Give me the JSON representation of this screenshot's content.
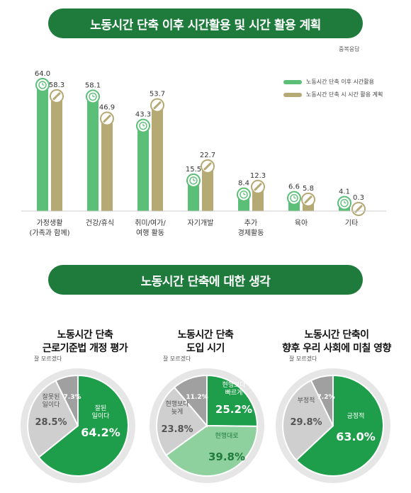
{
  "header": {
    "title": "노동시간 단축 이후 시간활용 및 시간 활용 계획",
    "note": "중복응답"
  },
  "section2": {
    "title": "노동시간 단축에 대한 생각"
  },
  "colors": {
    "dark_green": "#1e7b3c",
    "green": "#5cbf77",
    "olive": "#b5a974",
    "gray": "#a9a9a9",
    "light_gray": "#cfcfcf",
    "light_green": "#8fd19e"
  },
  "chart_data": [
    {
      "type": "bar",
      "categories": [
        "가정생활\n(가족과 함께)",
        "건강/휴식",
        "취미/여가/\n여행 활동",
        "자기개발",
        "추가\n경제활동",
        "육아",
        "기타"
      ],
      "series": [
        {
          "name": "노동시간 단축 이후 시간활용",
          "values": [
            64.0,
            58.1,
            43.3,
            15.5,
            8.4,
            6.6,
            4.1
          ],
          "color": "#5cbf77",
          "icon": "clock-icon"
        },
        {
          "name": "노동시간 단축 시 시간 활용 계획",
          "values": [
            58.3,
            46.9,
            53.7,
            22.7,
            12.3,
            5.8,
            0.3
          ],
          "color": "#b5a974",
          "icon": "pencil-icon"
        }
      ],
      "ylim": [
        0,
        64
      ]
    },
    {
      "type": "pie",
      "title": "노동시간 단축\n근로기준법 개정 평가",
      "slices": [
        {
          "label": "잘된\n일이다",
          "value": 64.2,
          "color": "#1e9e4a"
        },
        {
          "label": "잘못된\n일이다",
          "value": 28.5,
          "color": "#cfcfcf"
        },
        {
          "label": "잘 모르겠다",
          "value": 7.3,
          "color": "#a0a0a0"
        }
      ]
    },
    {
      "type": "pie",
      "title": "노동시간 단축\n도입 시기",
      "slices": [
        {
          "label": "현행보다\n빠르게",
          "value": 25.2,
          "color": "#1e9e4a"
        },
        {
          "label": "현행대로",
          "value": 39.8,
          "color": "#8fd19e"
        },
        {
          "label": "현행보다\n늦게",
          "value": 23.8,
          "color": "#cfcfcf"
        },
        {
          "label": "잘 모르겠다",
          "value": 11.2,
          "color": "#a0a0a0"
        }
      ]
    },
    {
      "type": "pie",
      "title": "노동시간 단축이\n향후 우리 사회에 미칠 영향",
      "slices": [
        {
          "label": "긍정적",
          "value": 63.0,
          "color": "#1e9e4a"
        },
        {
          "label": "부정적",
          "value": 29.8,
          "color": "#cfcfcf"
        },
        {
          "label": "잘 모르겠다",
          "value": 7.2,
          "color": "#a0a0a0"
        }
      ]
    }
  ]
}
